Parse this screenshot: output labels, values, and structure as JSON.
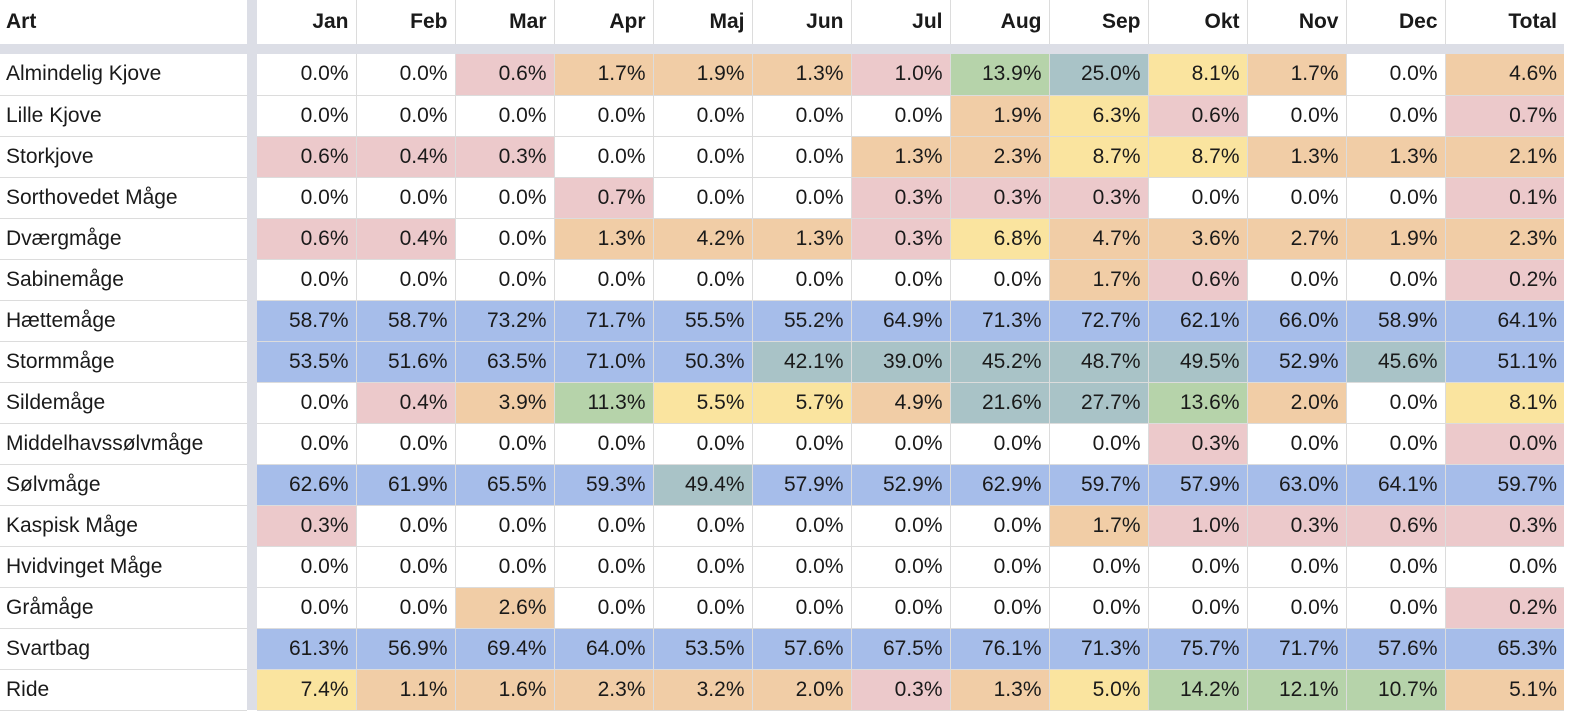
{
  "colors": {
    "white": "#ffffff",
    "pink": "#ecc9cb",
    "orange": "#f1cda6",
    "yellow": "#fae49f",
    "green": "#b6d3aa",
    "teal": "#a9c3c7",
    "blue": "#a6bdea",
    "gridline": "#dcdcdc",
    "frozen_divider": "#dcdee6"
  },
  "header": {
    "art": "Art",
    "months": [
      "Jan",
      "Feb",
      "Mar",
      "Apr",
      "Maj",
      "Jun",
      "Jul",
      "Aug",
      "Sep",
      "Okt",
      "Nov",
      "Dec",
      "Total"
    ]
  },
  "rows": [
    {
      "name": "Almindelig Kjove",
      "values": [
        "0.0%",
        "0.0%",
        "0.6%",
        "1.7%",
        "1.9%",
        "1.3%",
        "1.0%",
        "13.9%",
        "25.0%",
        "8.1%",
        "1.7%",
        "0.0%",
        "4.6%"
      ],
      "fills": [
        "white",
        "white",
        "pink",
        "orange",
        "orange",
        "orange",
        "pink",
        "green",
        "teal",
        "yellow",
        "orange",
        "white",
        "orange"
      ]
    },
    {
      "name": "Lille Kjove",
      "values": [
        "0.0%",
        "0.0%",
        "0.0%",
        "0.0%",
        "0.0%",
        "0.0%",
        "0.0%",
        "1.9%",
        "6.3%",
        "0.6%",
        "0.0%",
        "0.0%",
        "0.7%"
      ],
      "fills": [
        "white",
        "white",
        "white",
        "white",
        "white",
        "white",
        "white",
        "orange",
        "yellow",
        "pink",
        "white",
        "white",
        "pink"
      ]
    },
    {
      "name": "Storkjove",
      "values": [
        "0.6%",
        "0.4%",
        "0.3%",
        "0.0%",
        "0.0%",
        "0.0%",
        "1.3%",
        "2.3%",
        "8.7%",
        "8.7%",
        "1.3%",
        "1.3%",
        "2.1%"
      ],
      "fills": [
        "pink",
        "pink",
        "pink",
        "white",
        "white",
        "white",
        "orange",
        "orange",
        "yellow",
        "yellow",
        "orange",
        "orange",
        "orange"
      ]
    },
    {
      "name": "Sorthovedet Måge",
      "values": [
        "0.0%",
        "0.0%",
        "0.0%",
        "0.7%",
        "0.0%",
        "0.0%",
        "0.3%",
        "0.3%",
        "0.3%",
        "0.0%",
        "0.0%",
        "0.0%",
        "0.1%"
      ],
      "fills": [
        "white",
        "white",
        "white",
        "pink",
        "white",
        "white",
        "pink",
        "pink",
        "pink",
        "white",
        "white",
        "white",
        "pink"
      ]
    },
    {
      "name": "Dværgmåge",
      "values": [
        "0.6%",
        "0.4%",
        "0.0%",
        "1.3%",
        "4.2%",
        "1.3%",
        "0.3%",
        "6.8%",
        "4.7%",
        "3.6%",
        "2.7%",
        "1.9%",
        "2.3%"
      ],
      "fills": [
        "pink",
        "pink",
        "white",
        "orange",
        "orange",
        "orange",
        "pink",
        "yellow",
        "orange",
        "orange",
        "orange",
        "orange",
        "orange"
      ]
    },
    {
      "name": "Sabinemåge",
      "values": [
        "0.0%",
        "0.0%",
        "0.0%",
        "0.0%",
        "0.0%",
        "0.0%",
        "0.0%",
        "0.0%",
        "1.7%",
        "0.6%",
        "0.0%",
        "0.0%",
        "0.2%"
      ],
      "fills": [
        "white",
        "white",
        "white",
        "white",
        "white",
        "white",
        "white",
        "white",
        "orange",
        "pink",
        "white",
        "white",
        "pink"
      ]
    },
    {
      "name": "Hættemåge",
      "values": [
        "58.7%",
        "58.7%",
        "73.2%",
        "71.7%",
        "55.5%",
        "55.2%",
        "64.9%",
        "71.3%",
        "72.7%",
        "62.1%",
        "66.0%",
        "58.9%",
        "64.1%"
      ],
      "fills": [
        "blue",
        "blue",
        "blue",
        "blue",
        "blue",
        "blue",
        "blue",
        "blue",
        "blue",
        "blue",
        "blue",
        "blue",
        "blue"
      ]
    },
    {
      "name": "Stormmåge",
      "values": [
        "53.5%",
        "51.6%",
        "63.5%",
        "71.0%",
        "50.3%",
        "42.1%",
        "39.0%",
        "45.2%",
        "48.7%",
        "49.5%",
        "52.9%",
        "45.6%",
        "51.1%"
      ],
      "fills": [
        "blue",
        "blue",
        "blue",
        "blue",
        "blue",
        "teal",
        "teal",
        "teal",
        "teal",
        "teal",
        "blue",
        "teal",
        "blue"
      ]
    },
    {
      "name": "Sildemåge",
      "values": [
        "0.0%",
        "0.4%",
        "3.9%",
        "11.3%",
        "5.5%",
        "5.7%",
        "4.9%",
        "21.6%",
        "27.7%",
        "13.6%",
        "2.0%",
        "0.0%",
        "8.1%"
      ],
      "fills": [
        "white",
        "pink",
        "orange",
        "green",
        "yellow",
        "yellow",
        "orange",
        "teal",
        "teal",
        "green",
        "orange",
        "white",
        "yellow"
      ]
    },
    {
      "name": "Middelhavssølvmåge",
      "values": [
        "0.0%",
        "0.0%",
        "0.0%",
        "0.0%",
        "0.0%",
        "0.0%",
        "0.0%",
        "0.0%",
        "0.0%",
        "0.3%",
        "0.0%",
        "0.0%",
        "0.0%"
      ],
      "fills": [
        "white",
        "white",
        "white",
        "white",
        "white",
        "white",
        "white",
        "white",
        "white",
        "pink",
        "white",
        "white",
        "pink"
      ]
    },
    {
      "name": "Sølvmåge",
      "values": [
        "62.6%",
        "61.9%",
        "65.5%",
        "59.3%",
        "49.4%",
        "57.9%",
        "52.9%",
        "62.9%",
        "59.7%",
        "57.9%",
        "63.0%",
        "64.1%",
        "59.7%"
      ],
      "fills": [
        "blue",
        "blue",
        "blue",
        "blue",
        "teal",
        "blue",
        "blue",
        "blue",
        "blue",
        "blue",
        "blue",
        "blue",
        "blue"
      ]
    },
    {
      "name": "Kaspisk Måge",
      "values": [
        "0.3%",
        "0.0%",
        "0.0%",
        "0.0%",
        "0.0%",
        "0.0%",
        "0.0%",
        "0.0%",
        "1.7%",
        "1.0%",
        "0.3%",
        "0.6%",
        "0.3%"
      ],
      "fills": [
        "pink",
        "white",
        "white",
        "white",
        "white",
        "white",
        "white",
        "white",
        "orange",
        "pink",
        "pink",
        "pink",
        "pink"
      ]
    },
    {
      "name": "Hvidvinget Måge",
      "values": [
        "0.0%",
        "0.0%",
        "0.0%",
        "0.0%",
        "0.0%",
        "0.0%",
        "0.0%",
        "0.0%",
        "0.0%",
        "0.0%",
        "0.0%",
        "0.0%",
        "0.0%"
      ],
      "fills": [
        "white",
        "white",
        "white",
        "white",
        "white",
        "white",
        "white",
        "white",
        "white",
        "white",
        "white",
        "white",
        "white"
      ]
    },
    {
      "name": "Gråmåge",
      "values": [
        "0.0%",
        "0.0%",
        "2.6%",
        "0.0%",
        "0.0%",
        "0.0%",
        "0.0%",
        "0.0%",
        "0.0%",
        "0.0%",
        "0.0%",
        "0.0%",
        "0.2%"
      ],
      "fills": [
        "white",
        "white",
        "orange",
        "white",
        "white",
        "white",
        "white",
        "white",
        "white",
        "white",
        "white",
        "white",
        "pink"
      ]
    },
    {
      "name": "Svartbag",
      "values": [
        "61.3%",
        "56.9%",
        "69.4%",
        "64.0%",
        "53.5%",
        "57.6%",
        "67.5%",
        "76.1%",
        "71.3%",
        "75.7%",
        "71.7%",
        "57.6%",
        "65.3%"
      ],
      "fills": [
        "blue",
        "blue",
        "blue",
        "blue",
        "blue",
        "blue",
        "blue",
        "blue",
        "blue",
        "blue",
        "blue",
        "blue",
        "blue"
      ]
    },
    {
      "name": "Ride",
      "values": [
        "7.4%",
        "1.1%",
        "1.6%",
        "2.3%",
        "3.2%",
        "2.0%",
        "0.3%",
        "1.3%",
        "5.0%",
        "14.2%",
        "12.1%",
        "10.7%",
        "5.1%"
      ],
      "fills": [
        "yellow",
        "orange",
        "orange",
        "orange",
        "orange",
        "orange",
        "pink",
        "orange",
        "yellow",
        "green",
        "green",
        "green",
        "orange"
      ]
    }
  ]
}
